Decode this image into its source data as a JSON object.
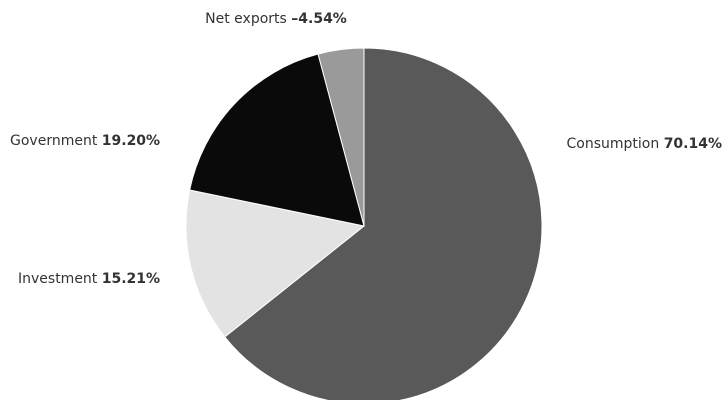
{
  "chart_data": {
    "type": "pie",
    "title": "",
    "slices": [
      {
        "name": "Consumption",
        "value": 70.14,
        "value_label": "70.14%",
        "color": "#595959"
      },
      {
        "name": "Investment",
        "value": 15.21,
        "value_label": "15.21%",
        "color": "#e3e3e3"
      },
      {
        "name": "Government",
        "value": 19.2,
        "value_label": "19.20%",
        "color": "#0a0a0a"
      },
      {
        "name": "Net exports",
        "value": -4.54,
        "value_label": "–4.54%",
        "color": "#9a9a9a"
      }
    ],
    "legend": "none"
  }
}
